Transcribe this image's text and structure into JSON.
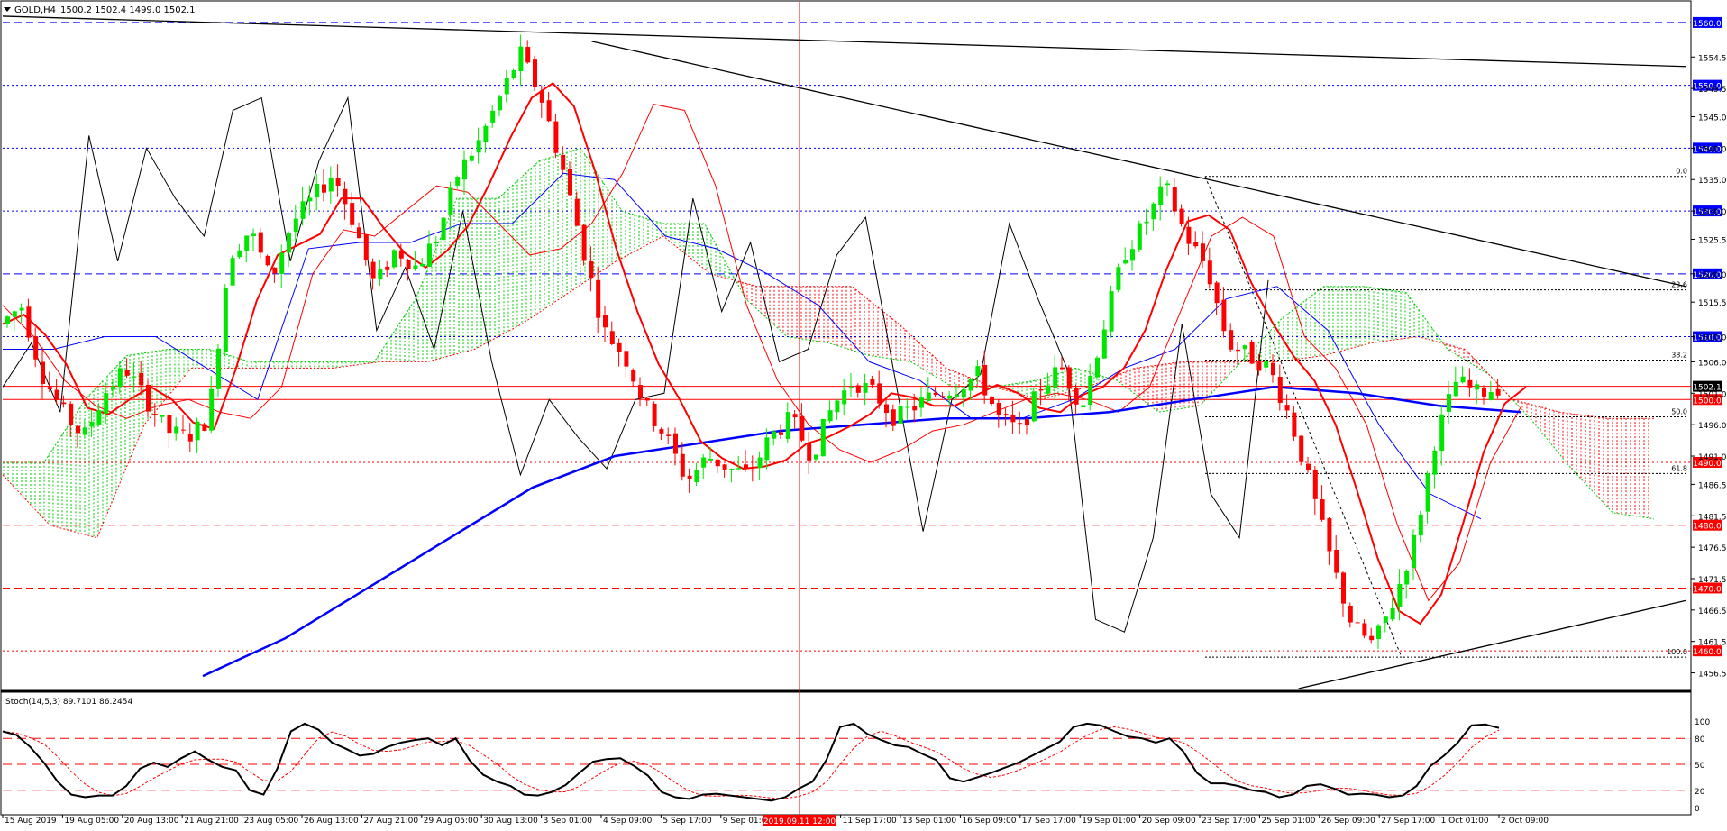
{
  "window": {
    "symbol_label": "GOLD,H4",
    "ohlc_label": "1500.2 1502.4 1499.0 1502.1",
    "menu_icon": "triangle-down-icon"
  },
  "colors": {
    "bull": "#00e600",
    "bear": "#ff0000",
    "ma_long": "#0000ff",
    "kijun": "#0000ff",
    "tenkan": "#ff0000",
    "chikou": "#000000",
    "cloud_bull": "#00cc00",
    "cloud_bear": "#ff0000",
    "level_blue": "#0000ff",
    "level_red": "#ff0000",
    "stoch_main": "#000000",
    "stoch_signal": "#ff0000"
  },
  "price_axis": {
    "ticks": [
      "1554.5",
      "1549.5",
      "1545.0",
      "1540.0",
      "1535.0",
      "1530.0",
      "1525.5",
      "1520.0",
      "1515.5",
      "1510.0",
      "1506.0",
      "1501.0",
      "1496.0",
      "1491.0",
      "1486.5",
      "1481.5",
      "1476.5",
      "1471.5",
      "1466.5",
      "1461.5",
      "1456.5"
    ],
    "current_price": "1502.1"
  },
  "levels": {
    "blue": [
      "1560.0",
      "1550.0",
      "1540.0",
      "1530.0",
      "1520.0",
      "1510.0"
    ],
    "red": [
      "1500.0",
      "1490.0",
      "1480.0",
      "1470.0",
      "1460.0"
    ]
  },
  "fibonacci": [
    "0.0",
    "23.6",
    "38.2",
    "50.0",
    "61.8",
    "100.0"
  ],
  "time_axis": [
    "15 Aug 2019",
    "19 Aug 05:00",
    "20 Aug 13:00",
    "21 Aug 21:00",
    "23 Aug 05:00",
    "26 Aug 13:00",
    "27 Aug 21:00",
    "29 Aug 05:00",
    "30 Aug 13:00",
    "3 Sep 01:00",
    "4 Sep 09:00",
    "5 Sep 17:00",
    "9 Sep 01:00",
    "10 Sep 09:00",
    "11 Sep 17:00",
    "13 Sep 01:00",
    "16 Sep 09:00",
    "17 Sep 17:00",
    "19 Sep 01:00",
    "20 Sep 09:00",
    "23 Sep 17:00",
    "25 Sep 01:00",
    "26 Sep 09:00",
    "27 Sep 17:00",
    "1 Oct 01:00",
    "2 Oct 09:00"
  ],
  "crosshair_time": "2019.09.11 12:00",
  "stochastic": {
    "label": "Stoch(14,5,3) 89.7101 86.2454",
    "ticks": [
      "100",
      "80",
      "50",
      "20",
      "0"
    ]
  },
  "chart_data": {
    "type": "candlestick",
    "timeframe": "H4",
    "ylim": [
      1454,
      1563
    ],
    "x": [
      "15 Aug 2019",
      "19 Aug 05:00",
      "20 Aug 13:00",
      "21 Aug 21:00",
      "23 Aug 05:00",
      "26 Aug 13:00",
      "27 Aug 21:00",
      "29 Aug 05:00",
      "30 Aug 13:00",
      "3 Sep 01:00",
      "4 Sep 09:00",
      "5 Sep 17:00",
      "9 Sep 01:00",
      "10 Sep 09:00",
      "11 Sep 17:00",
      "13 Sep 01:00",
      "16 Sep 09:00",
      "17 Sep 17:00",
      "19 Sep 01:00",
      "20 Sep 09:00",
      "23 Sep 17:00",
      "25 Sep 01:00",
      "26 Sep 09:00",
      "27 Sep 17:00",
      "1 Oct 01:00",
      "2 Oct 09:00"
    ],
    "close_path": [
      1512,
      1515,
      1504,
      1498,
      1494,
      1501,
      1505,
      1500,
      1495,
      1494,
      1497,
      1523,
      1527,
      1519,
      1528,
      1532,
      1536,
      1528,
      1518,
      1524,
      1521,
      1526,
      1536,
      1541,
      1548,
      1555,
      1548,
      1537,
      1524,
      1511,
      1507,
      1499,
      1494,
      1487,
      1491,
      1489,
      1488,
      1494,
      1497,
      1491,
      1499,
      1503,
      1501,
      1497,
      1499,
      1501,
      1502,
      1504,
      1497,
      1495,
      1502,
      1505,
      1499,
      1511,
      1523,
      1528,
      1534,
      1526,
      1521,
      1509,
      1507,
      1505,
      1497,
      1486,
      1474,
      1464,
      1461,
      1468,
      1478,
      1494,
      1503,
      1501,
      1502
    ],
    "tenkan_path": [
      1515,
      1510,
      1503,
      1499,
      1497,
      1499,
      1500,
      1498,
      1497,
      1502,
      1520,
      1527,
      1526,
      1530,
      1534,
      1533,
      1528,
      1523,
      1524,
      1528,
      1536,
      1547,
      1546,
      1534,
      1515,
      1503,
      1496,
      1492,
      1490,
      1492,
      1495,
      1496,
      1498,
      1500,
      1501,
      1500,
      1498,
      1502,
      1514,
      1526,
      1529,
      1526,
      1510,
      1505,
      1496,
      1480,
      1468,
      1474,
      1490,
      1499
    ],
    "kijun_path": [
      1508,
      1508,
      1510,
      1510,
      1505,
      1500,
      1524,
      1525,
      1525,
      1528,
      1528,
      1536,
      1535,
      1526,
      1524,
      1520,
      1515,
      1506,
      1503,
      1497,
      1497,
      1500,
      1505,
      1508,
      1516,
      1518,
      1511,
      1496,
      1485,
      1481
    ],
    "ma_long_path": [
      1456,
      1462,
      1470,
      1478,
      1486,
      1491,
      1493,
      1495,
      1496,
      1497,
      1497,
      1498,
      1500,
      1502,
      1501,
      1499,
      1498
    ],
    "chikou_path": [
      1502,
      1509,
      1498,
      1542,
      1522,
      1540,
      1532,
      1526,
      1546,
      1548,
      1522,
      1538,
      1548,
      1511,
      1521,
      1508,
      1530,
      1506,
      1488,
      1500,
      1494,
      1489,
      1500,
      1501,
      1532,
      1514,
      1525,
      1506,
      1508,
      1523,
      1529,
      1504,
      1479,
      1500,
      1504,
      1528,
      1516,
      1505,
      1465,
      1463,
      1478,
      1512,
      1485,
      1478,
      1519
    ],
    "senkou_a_path": [
      1490,
      1490,
      1500,
      1507,
      1508,
      1508,
      1506,
      1506,
      1506,
      1506,
      1516,
      1532,
      1532,
      1538,
      1540,
      1530,
      1528,
      1528,
      1516,
      1510,
      1509,
      1507,
      1506,
      1502,
      1502,
      1503,
      1505,
      1503,
      1498,
      1499,
      1506,
      1513,
      1518,
      1518,
      1517,
      1508,
      1504,
      1497,
      1489,
      1482,
      1481
    ],
    "senkou_b_path": [
      1488,
      1480,
      1478,
      1496,
      1505,
      1505,
      1505,
      1505,
      1506,
      1506,
      1508,
      1512,
      1517,
      1522,
      1526,
      1520,
      1518,
      1518,
      1518,
      1512,
      1505,
      1502,
      1500,
      1502,
      1505,
      1506,
      1506,
      1506,
      1507,
      1509,
      1510,
      1508,
      1500,
      1498,
      1497,
      1497
    ],
    "trendlines": [
      {
        "from": [
          0,
          1561
        ],
        "to": [
          1,
          1553
        ]
      },
      {
        "from": [
          0.35,
          1557
        ],
        "to": [
          1,
          1518
        ]
      },
      {
        "from": [
          0.77,
          1454
        ],
        "to": [
          1,
          1468
        ]
      }
    ],
    "fib_range": [
      1535.5,
      1459
    ],
    "stochastic_main": [
      88,
      84,
      70,
      52,
      30,
      15,
      12,
      14,
      14,
      25,
      45,
      52,
      47,
      57,
      65,
      55,
      47,
      43,
      20,
      15,
      45,
      88,
      97,
      90,
      75,
      68,
      60,
      62,
      70,
      75,
      78,
      80,
      72,
      80,
      55,
      38,
      30,
      25,
      15,
      14,
      18,
      26,
      40,
      53,
      56,
      57,
      48,
      37,
      18,
      12,
      10,
      15,
      16,
      14,
      12,
      10,
      8,
      12,
      22,
      30,
      55,
      93,
      97,
      85,
      78,
      72,
      70,
      62,
      55,
      34,
      30,
      35,
      40,
      46,
      52,
      60,
      68,
      76,
      93,
      97,
      95,
      88,
      82,
      80,
      75,
      80,
      65,
      40,
      28,
      28,
      25,
      20,
      18,
      12,
      15,
      25,
      27,
      22,
      15,
      16,
      15,
      12,
      14,
      25,
      48,
      60,
      75,
      95,
      96,
      92
    ]
  }
}
